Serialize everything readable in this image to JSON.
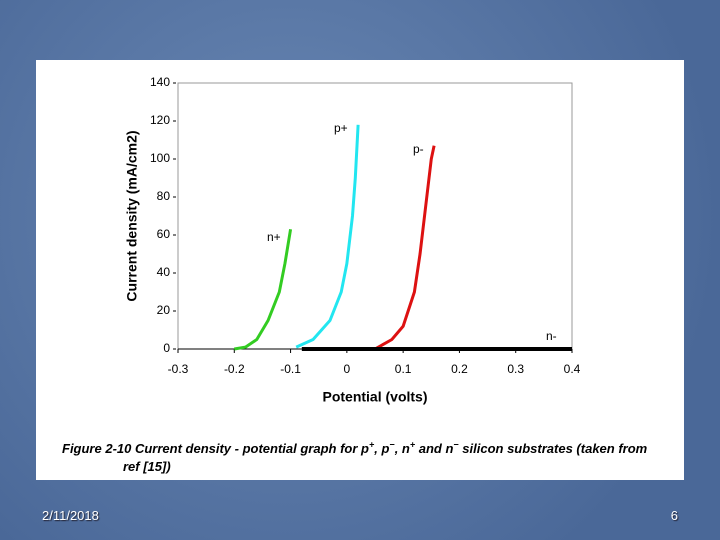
{
  "chart_data": {
    "type": "line",
    "xlabel": "Potential (volts)",
    "ylabel": "Current density (mA/cm2)",
    "xlim": [
      -0.3,
      0.4
    ],
    "xticks": [
      -0.3,
      -0.2,
      -0.1,
      0,
      0.1,
      0.2,
      0.3,
      0.4
    ],
    "ylim": [
      0,
      140
    ],
    "yticks": [
      0,
      20,
      40,
      60,
      80,
      100,
      120,
      140
    ],
    "series": [
      {
        "name": "n+",
        "color": "#33cc22",
        "x": [
          -0.2,
          -0.18,
          -0.16,
          -0.14,
          -0.12,
          -0.11,
          -0.1
        ],
        "values": [
          0,
          1,
          5,
          15,
          30,
          45,
          63
        ]
      },
      {
        "name": "p+",
        "color": "#22e6f0",
        "x": [
          -0.09,
          -0.06,
          -0.03,
          -0.01,
          0,
          0.01,
          0.015,
          0.02
        ],
        "values": [
          1,
          5,
          15,
          30,
          45,
          70,
          90,
          118
        ]
      },
      {
        "name": "p-",
        "color": "#dd1111",
        "x": [
          0.05,
          0.08,
          0.1,
          0.12,
          0.13,
          0.14,
          0.15,
          0.155
        ],
        "values": [
          0,
          5,
          12,
          30,
          50,
          75,
          100,
          107
        ]
      },
      {
        "name": "n-",
        "color": "#000000",
        "x": [
          -0.08,
          0.4
        ],
        "values": [
          0,
          0
        ]
      }
    ]
  },
  "caption": {
    "parts": [
      "Figure 2-10 Current density - potential graph for p",
      "+",
      ", p",
      "−",
      ", n",
      "+",
      " and n",
      "−",
      " silicon substrates (taken from ref [15])"
    ]
  },
  "footer": {
    "date": "2/11/2018",
    "page": "6"
  }
}
